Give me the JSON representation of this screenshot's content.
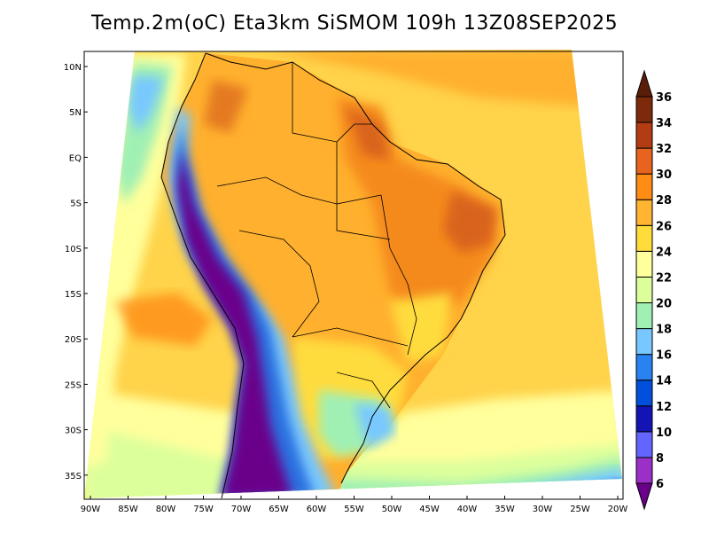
{
  "title": "Temp.2m(oC) Eta3km SiSMOM 109h 13Z08SEP2025",
  "lat_labels": [
    "10N",
    "5N",
    "EQ",
    "5S",
    "10S",
    "15S",
    "20S",
    "25S",
    "30S",
    "35S"
  ],
  "lon_labels": [
    "90W",
    "85W",
    "80W",
    "75W",
    "70W",
    "65W",
    "60W",
    "55W",
    "50W",
    "45W",
    "40W",
    "35W",
    "30W",
    "25W",
    "20W"
  ],
  "colorbar": {
    "labels": [
      "6",
      "8",
      "10",
      "12",
      "14",
      "16",
      "18",
      "20",
      "22",
      "24",
      "26",
      "28",
      "30",
      "32",
      "34",
      "36"
    ],
    "colors": [
      "#6a008a",
      "#9b30c8",
      "#6464ff",
      "#1414b4",
      "#0050dc",
      "#2882f0",
      "#78c8ff",
      "#a0f0b4",
      "#dcff9c",
      "#ffff9c",
      "#ffdc3c",
      "#ffb432",
      "#ff8c14",
      "#e6641e",
      "#b43c14",
      "#7d2a0c",
      "#5a1e08"
    ]
  },
  "map_colors": {
    "ocean_warm": "#ffd34a",
    "ocean_hot": "#ffb02e",
    "land_hot": "#f58a1e",
    "land_very_hot": "#d9641c",
    "andes_cold": "#6a008a",
    "andes_mid": "#2c6fe0",
    "pale": "#ffff9c",
    "green": "#bff0a0",
    "cyan": "#78c8ff"
  }
}
